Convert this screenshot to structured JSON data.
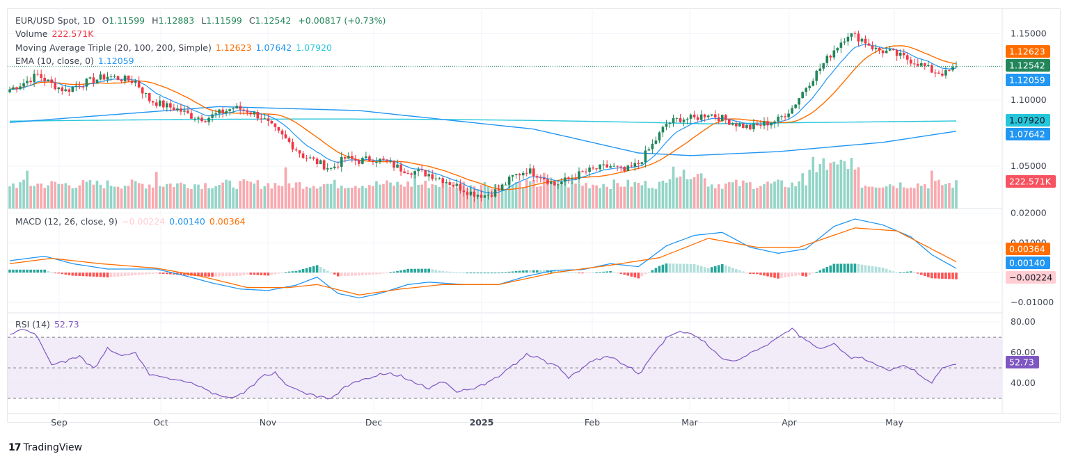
{
  "header": {
    "symbol": "EUR/USD Spot, 1D",
    "open_label": "O",
    "open": "1.11599",
    "high_label": "H",
    "high": "1.12883",
    "low_label": "L",
    "low": "1.11599",
    "close_label": "C",
    "close": "1.12542",
    "change": "+0.00817 (+0.73%)"
  },
  "volume_legend": {
    "label": "Volume",
    "value": "222.571K"
  },
  "ma_legend": {
    "label": "Moving Average Triple (20, 100, 200, Simple)",
    "ma20": "1.12623",
    "ma100": "1.07642",
    "ma200": "1.07920"
  },
  "ema_legend": {
    "label": "EMA (10, close, 0)",
    "value": "1.12059"
  },
  "macd_legend": {
    "label": "MACD (12, 26, close, 9)",
    "hist": "−0.00224",
    "macd": "0.00140",
    "signal": "0.00364"
  },
  "rsi_legend": {
    "label": "RSI (14)",
    "value": "52.73"
  },
  "brand": {
    "name": "TradingView"
  },
  "colors": {
    "up": "#22865a",
    "down": "#f23645",
    "vol_up": "#92d5c7",
    "vol_down": "#f8a9ae",
    "ma20": "#ff6d00",
    "ma100": "#2196f3",
    "ma200": "#26c6da",
    "ema": "#2196f3",
    "macd": "#2196f3",
    "signal": "#ff6d00",
    "rsi": "#7e57c2",
    "rsi_band": "#ede7f6"
  },
  "chart_data": [
    {
      "type": "candlestick",
      "title": "EUR/USD Spot, 1D",
      "x_ticks": [
        "Sep",
        "Oct",
        "Nov",
        "Dec",
        "2025",
        "Feb",
        "Mar",
        "Apr",
        "May"
      ],
      "y_ticks": [
        "1.15000",
        "1.10000",
        "1.05000"
      ],
      "ylim": [
        1.018,
        1.165
      ],
      "price_tags": [
        {
          "label": "1.12623",
          "value": 1.12623,
          "color": "#ff6d00"
        },
        {
          "label": "1.12542",
          "value": 1.12542,
          "color": "#22865a"
        },
        {
          "label": "1.12059",
          "value": 1.12059,
          "color": "#2196f3"
        },
        {
          "label": "1.07920",
          "value": 1.0792,
          "color": "#26c6da"
        },
        {
          "label": "1.07642",
          "value": 1.07642,
          "color": "#2196f3"
        }
      ],
      "close_anchors": [
        [
          0,
          1.108
        ],
        [
          4,
          1.113
        ],
        [
          8,
          1.119
        ],
        [
          12,
          1.112
        ],
        [
          16,
          1.107
        ],
        [
          20,
          1.112
        ],
        [
          24,
          1.115
        ],
        [
          28,
          1.118
        ],
        [
          32,
          1.116
        ],
        [
          36,
          1.114
        ],
        [
          40,
          1.1
        ],
        [
          44,
          1.096
        ],
        [
          48,
          1.093
        ],
        [
          52,
          1.088
        ],
        [
          56,
          1.086
        ],
        [
          60,
          1.09
        ],
        [
          64,
          1.094
        ],
        [
          68,
          1.092
        ],
        [
          72,
          1.087
        ],
        [
          76,
          1.077
        ],
        [
          80,
          1.068
        ],
        [
          84,
          1.058
        ],
        [
          88,
          1.053
        ],
        [
          92,
          1.048
        ],
        [
          96,
          1.056
        ],
        [
          100,
          1.054
        ],
        [
          104,
          1.056
        ],
        [
          108,
          1.053
        ],
        [
          112,
          1.048
        ],
        [
          116,
          1.046
        ],
        [
          120,
          1.044
        ],
        [
          124,
          1.04
        ],
        [
          128,
          1.035
        ],
        [
          132,
          1.03
        ],
        [
          136,
          1.028
        ],
        [
          140,
          1.032
        ],
        [
          144,
          1.042
        ],
        [
          148,
          1.047
        ],
        [
          152,
          1.043
        ],
        [
          156,
          1.036
        ],
        [
          160,
          1.04
        ],
        [
          164,
          1.045
        ],
        [
          168,
          1.048
        ],
        [
          172,
          1.05
        ],
        [
          176,
          1.046
        ],
        [
          180,
          1.052
        ],
        [
          184,
          1.066
        ],
        [
          188,
          1.082
        ],
        [
          192,
          1.086
        ],
        [
          196,
          1.086
        ],
        [
          200,
          1.09
        ],
        [
          204,
          1.086
        ],
        [
          208,
          1.082
        ],
        [
          212,
          1.079
        ],
        [
          216,
          1.082
        ],
        [
          220,
          1.085
        ],
        [
          224,
          1.094
        ],
        [
          228,
          1.11
        ],
        [
          232,
          1.124
        ],
        [
          236,
          1.138
        ],
        [
          240,
          1.15
        ],
        [
          244,
          1.146
        ],
        [
          248,
          1.138
        ],
        [
          252,
          1.136
        ],
        [
          256,
          1.132
        ],
        [
          260,
          1.128
        ],
        [
          264,
          1.122
        ],
        [
          268,
          1.12
        ],
        [
          271,
          1.125
        ]
      ],
      "volume_label": "222.571K"
    },
    {
      "type": "line",
      "title": "MACD (12, 26, close, 9)",
      "y_ticks": [
        "0.02000",
        "0.01000",
        "−0.01000"
      ],
      "ylim": [
        -0.0135,
        0.0215
      ],
      "series": [
        {
          "name": "MACD",
          "anchors": [
            [
              0,
              0.004
            ],
            [
              10,
              0.0055
            ],
            [
              18,
              0.003
            ],
            [
              28,
              0.0012
            ],
            [
              42,
              0.0012
            ],
            [
              50,
              -0.001
            ],
            [
              58,
              -0.0035
            ],
            [
              66,
              -0.0055
            ],
            [
              74,
              -0.006
            ],
            [
              82,
              -0.0042
            ],
            [
              88,
              -0.0015
            ],
            [
              94,
              -0.007
            ],
            [
              100,
              -0.0085
            ],
            [
              106,
              -0.007
            ],
            [
              114,
              -0.004
            ],
            [
              120,
              -0.0032
            ],
            [
              130,
              -0.004
            ],
            [
              140,
              -0.004
            ],
            [
              148,
              -0.0012
            ],
            [
              156,
              0.0008
            ],
            [
              164,
              0.001
            ],
            [
              172,
              0.003
            ],
            [
              180,
              0.002
            ],
            [
              188,
              0.009
            ],
            [
              196,
              0.0125
            ],
            [
              204,
              0.0135
            ],
            [
              212,
              0.0085
            ],
            [
              220,
              0.0065
            ],
            [
              228,
              0.008
            ],
            [
              236,
              0.0155
            ],
            [
              242,
              0.018
            ],
            [
              250,
              0.016
            ],
            [
              258,
              0.012
            ],
            [
              264,
              0.006
            ],
            [
              271,
              0.0014
            ]
          ]
        },
        {
          "name": "Signal",
          "anchors": [
            [
              0,
              0.003
            ],
            [
              12,
              0.0048
            ],
            [
              26,
              0.003
            ],
            [
              42,
              0.0015
            ],
            [
              54,
              -0.001
            ],
            [
              68,
              -0.005
            ],
            [
              80,
              -0.005
            ],
            [
              88,
              -0.004
            ],
            [
              100,
              -0.0075
            ],
            [
              112,
              -0.0055
            ],
            [
              124,
              -0.004
            ],
            [
              140,
              -0.004
            ],
            [
              156,
              0.0
            ],
            [
              172,
              0.0025
            ],
            [
              186,
              0.005
            ],
            [
              200,
              0.0115
            ],
            [
              214,
              0.0085
            ],
            [
              226,
              0.0085
            ],
            [
              242,
              0.015
            ],
            [
              254,
              0.014
            ],
            [
              271,
              0.00364
            ]
          ]
        }
      ],
      "histogram_label": "−0.00224",
      "tags": [
        {
          "label": "0.00364",
          "value": 0.00364,
          "color": "#ff6d00"
        },
        {
          "label": "0.00140",
          "value": 0.0014,
          "color": "#2196f3"
        },
        {
          "label": "−0.00224",
          "value": -0.00224,
          "color": "#ffcdd2"
        }
      ]
    },
    {
      "type": "line",
      "title": "RSI (14)",
      "y_ticks": [
        "80.00",
        "60.00",
        "40.00"
      ],
      "ylim": [
        20,
        86
      ],
      "bands": [
        30,
        50,
        70
      ],
      "series": [
        {
          "name": "RSI",
          "anchors": [
            [
              0,
              72
            ],
            [
              4,
              76
            ],
            [
              8,
              70
            ],
            [
              12,
              52
            ],
            [
              16,
              55
            ],
            [
              20,
              58
            ],
            [
              24,
              50
            ],
            [
              28,
              62
            ],
            [
              32,
              58
            ],
            [
              36,
              60
            ],
            [
              40,
              46
            ],
            [
              44,
              44
            ],
            [
              48,
              42
            ],
            [
              52,
              40
            ],
            [
              56,
              36
            ],
            [
              60,
              32
            ],
            [
              64,
              30
            ],
            [
              68,
              36
            ],
            [
              72,
              44
            ],
            [
              76,
              46
            ],
            [
              80,
              38
            ],
            [
              84,
              34
            ],
            [
              88,
              32
            ],
            [
              92,
              30
            ],
            [
              96,
              38
            ],
            [
              100,
              42
            ],
            [
              104,
              44
            ],
            [
              108,
              46
            ],
            [
              112,
              44
            ],
            [
              116,
              40
            ],
            [
              120,
              36
            ],
            [
              124,
              42
            ],
            [
              128,
              34
            ],
            [
              132,
              36
            ],
            [
              136,
              40
            ],
            [
              140,
              44
            ],
            [
              144,
              52
            ],
            [
              148,
              58
            ],
            [
              152,
              56
            ],
            [
              156,
              52
            ],
            [
              160,
              44
            ],
            [
              164,
              50
            ],
            [
              168,
              56
            ],
            [
              172,
              58
            ],
            [
              176,
              52
            ],
            [
              180,
              46
            ],
            [
              184,
              58
            ],
            [
              188,
              70
            ],
            [
              192,
              74
            ],
            [
              196,
              72
            ],
            [
              200,
              64
            ],
            [
              204,
              56
            ],
            [
              208,
              54
            ],
            [
              212,
              60
            ],
            [
              216,
              64
            ],
            [
              220,
              70
            ],
            [
              224,
              76
            ],
            [
              228,
              68
            ],
            [
              232,
              62
            ],
            [
              236,
              66
            ],
            [
              240,
              58
            ],
            [
              244,
              56
            ],
            [
              248,
              52
            ],
            [
              252,
              48
            ],
            [
              256,
              52
            ],
            [
              260,
              46
            ],
            [
              264,
              40
            ],
            [
              267,
              50
            ],
            [
              271,
              52.73
            ]
          ]
        }
      ],
      "tag": {
        "label": "52.73",
        "value": 52.73,
        "color": "#7e57c2"
      }
    }
  ]
}
